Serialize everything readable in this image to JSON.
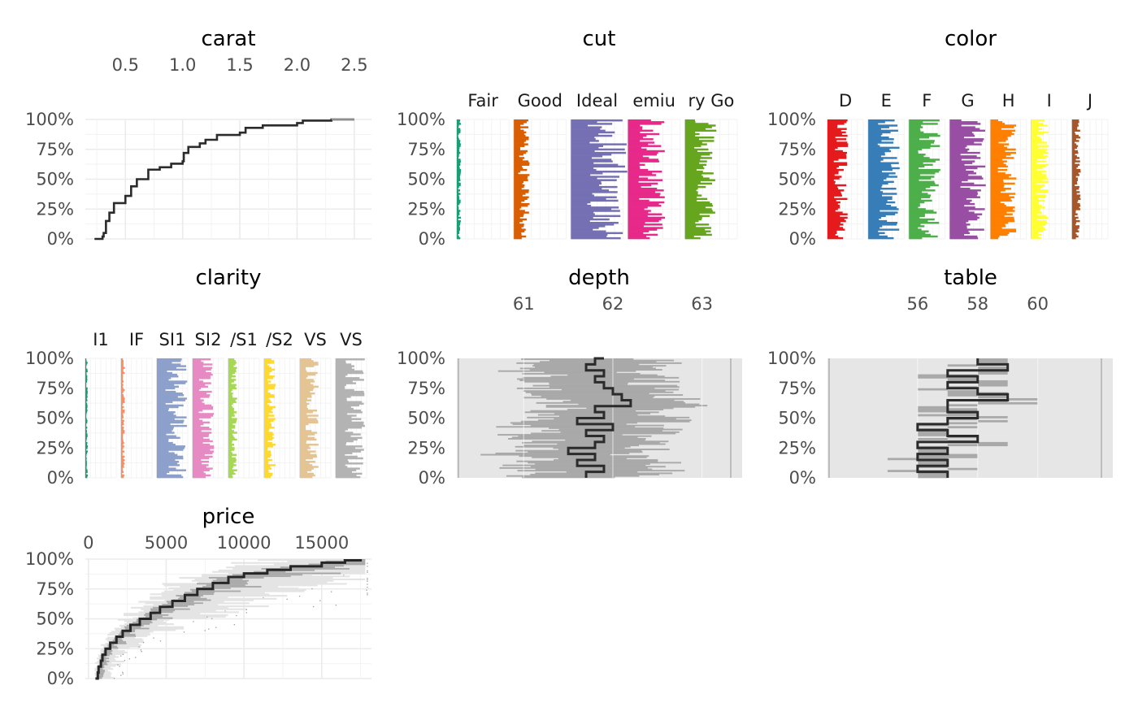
{
  "chart_data": [
    {
      "type": "line",
      "title": "carat",
      "x_ticks": [
        "0.5",
        "1.0",
        "1.5",
        "2.0",
        "2.5"
      ],
      "y_ticks": [
        "0%",
        "25%",
        "50%",
        "75%",
        "100%"
      ],
      "xlim": [
        0.15,
        2.65
      ],
      "ylim": [
        0,
        1
      ],
      "grid": true,
      "series": [
        {
          "x": [
            0.23,
            0.3,
            0.31,
            0.33,
            0.36,
            0.4,
            0.5,
            0.55,
            0.6,
            0.7,
            0.8,
            0.9,
            1.0,
            1.01,
            1.05,
            1.15,
            1.2,
            1.3,
            1.5,
            1.55,
            1.7,
            2.0,
            2.05,
            2.3,
            2.5
          ],
          "y": [
            0.0,
            0.02,
            0.05,
            0.15,
            0.22,
            0.3,
            0.36,
            0.44,
            0.5,
            0.58,
            0.6,
            0.63,
            0.65,
            0.72,
            0.77,
            0.8,
            0.83,
            0.87,
            0.89,
            0.93,
            0.95,
            0.97,
            0.99,
            1.0,
            1.0
          ]
        }
      ]
    },
    {
      "type": "bar",
      "title": "cut",
      "categories": [
        "Fair",
        "Good",
        "Ideal",
        "emiu",
        "ry Go"
      ],
      "y_ticks": [
        "0%",
        "25%",
        "50%",
        "75%",
        "100%"
      ],
      "ylim": [
        0,
        1
      ],
      "colors": [
        "#1b9e77",
        "#d95f02",
        "#7570b3",
        "#e7298a",
        "#66a61e"
      ],
      "values": [
        0.03,
        0.11,
        0.4,
        0.26,
        0.22
      ]
    },
    {
      "type": "bar",
      "title": "color",
      "categories": [
        "D",
        "E",
        "F",
        "G",
        "H",
        "I",
        "J"
      ],
      "y_ticks": [
        "0%",
        "25%",
        "50%",
        "75%",
        "100%"
      ],
      "ylim": [
        0,
        1
      ],
      "colors": [
        "#e41a1c",
        "#377eb8",
        "#4daf4a",
        "#984ea3",
        "#ff7f00",
        "#ffff33",
        "#a65628"
      ],
      "values": [
        0.12,
        0.18,
        0.18,
        0.21,
        0.15,
        0.1,
        0.05
      ]
    },
    {
      "type": "bar",
      "title": "clarity",
      "categories": [
        "I1",
        "IF",
        "SI1",
        "SI2",
        "/S1",
        "/S2",
        "VS",
        "VS"
      ],
      "y_ticks": [
        "0%",
        "25%",
        "50%",
        "75%",
        "100%"
      ],
      "ylim": [
        0,
        1
      ],
      "colors": [
        "#1b9e77",
        "#fc8d62",
        "#8da0cb",
        "#e78ac3",
        "#a6d854",
        "#ffd92f",
        "#e5c494",
        "#b3b3b3"
      ],
      "values": [
        0.01,
        0.03,
        0.24,
        0.17,
        0.07,
        0.09,
        0.15,
        0.23
      ]
    },
    {
      "type": "line",
      "title": "depth",
      "x_ticks": [
        "61",
        "62",
        "63"
      ],
      "y_ticks": [
        "0%",
        "25%",
        "50%",
        "75%",
        "100%"
      ],
      "xlim": [
        60.25,
        63.45
      ],
      "ylim": [
        0,
        1
      ],
      "grid": true,
      "series": [
        {
          "y": [
            0.0,
            0.05,
            0.1,
            0.15,
            0.2,
            0.25,
            0.3,
            0.35,
            0.4,
            0.45,
            0.5,
            0.55,
            0.6,
            0.65,
            0.7,
            0.75,
            0.8,
            0.85,
            0.9,
            0.95,
            1.0
          ],
          "x": [
            61.7,
            61.9,
            61.6,
            61.8,
            61.5,
            61.8,
            61.9,
            61.7,
            62.0,
            61.6,
            61.9,
            61.8,
            62.2,
            62.1,
            62.0,
            61.9,
            61.8,
            61.9,
            61.7,
            61.8,
            61.9
          ]
        }
      ]
    },
    {
      "type": "line",
      "title": "table",
      "x_ticks": [
        "56",
        "58",
        "60"
      ],
      "y_ticks": [
        "0%",
        "25%",
        "50%",
        "75%",
        "100%"
      ],
      "xlim": [
        53.0,
        62.5
      ],
      "ylim": [
        0,
        1
      ],
      "grid": true,
      "series": [
        {
          "y": [
            0.0,
            0.05,
            0.1,
            0.15,
            0.2,
            0.25,
            0.3,
            0.35,
            0.4,
            0.45,
            0.5,
            0.55,
            0.6,
            0.65,
            0.7,
            0.75,
            0.8,
            0.85,
            0.9,
            0.95,
            1.0
          ],
          "x": [
            57.0,
            56.0,
            57.0,
            56.0,
            57.0,
            56.0,
            58.0,
            57.0,
            56.0,
            57.0,
            58.0,
            57.0,
            57.0,
            59.0,
            58.0,
            57.0,
            58.0,
            57.0,
            59.0,
            58.0,
            58.0
          ]
        }
      ]
    },
    {
      "type": "line",
      "title": "price",
      "x_ticks": [
        "0",
        "5000",
        "10000",
        "15000"
      ],
      "y_ticks": [
        "0%",
        "25%",
        "50%",
        "75%",
        "100%"
      ],
      "xlim": [
        -200,
        18200
      ],
      "ylim": [
        0,
        1
      ],
      "grid": true,
      "series": [
        {
          "x": [
            450,
            600,
            650,
            800,
            900,
            1100,
            1400,
            1800,
            2200,
            2700,
            3300,
            4000,
            4600,
            5400,
            6200,
            7000,
            8000,
            9000,
            10000,
            11500,
            13000,
            15000,
            16500,
            17500
          ],
          "y": [
            0.0,
            0.05,
            0.1,
            0.15,
            0.2,
            0.25,
            0.3,
            0.35,
            0.4,
            0.45,
            0.5,
            0.55,
            0.6,
            0.65,
            0.7,
            0.75,
            0.8,
            0.85,
            0.88,
            0.91,
            0.94,
            0.97,
            0.99,
            1.0
          ]
        }
      ]
    }
  ]
}
